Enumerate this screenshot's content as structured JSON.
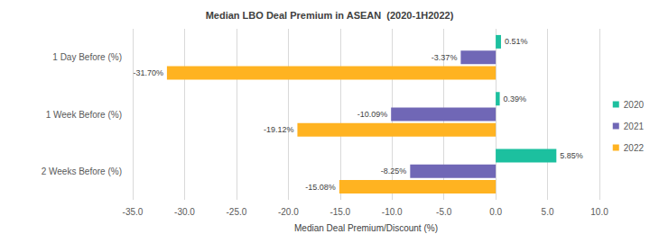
{
  "chart_data": {
    "type": "bar",
    "title": "Median LBO Deal Premium in ASEAN  (2020-1H2022)",
    "orientation": "horizontal",
    "categories": [
      "1 Day Before (%)",
      "1 Week Before (%)",
      "2 Weeks Before (%)"
    ],
    "series": [
      {
        "name": "2020",
        "color": "#1cc09f",
        "values": [
          0.51,
          0.39,
          5.85
        ],
        "value_labels": [
          "0.51%",
          "0.39%",
          "5.85%"
        ]
      },
      {
        "name": "2021",
        "color": "#7067b6",
        "values": [
          -3.37,
          -10.09,
          -8.25
        ],
        "value_labels": [
          "-3.37%",
          "-10.09%",
          "-8.25%"
        ]
      },
      {
        "name": "2022",
        "color": "#ffb321",
        "values": [
          -31.7,
          -19.12,
          -15.08
        ],
        "value_labels": [
          "-31.70%",
          "-19.12%",
          "-15.08%"
        ]
      }
    ],
    "xlabel": "Median Deal Premium/Discount (%)",
    "xlim": [
      -35,
      10
    ],
    "xticks": [
      {
        "value": -35,
        "label": "-35.0"
      },
      {
        "value": -30,
        "label": "-30.0"
      },
      {
        "value": -25,
        "label": "-25.0"
      },
      {
        "value": -20,
        "label": "-20.0"
      },
      {
        "value": -15,
        "label": "-15.0"
      },
      {
        "value": -10,
        "label": "-10.0"
      },
      {
        "value": -5,
        "label": "-5.0"
      },
      {
        "value": 0,
        "label": "0.0"
      },
      {
        "value": 5,
        "label": "5.0"
      },
      {
        "value": 10,
        "label": "10.0"
      }
    ],
    "grid": true,
    "legend": "right",
    "data_labels": true
  }
}
